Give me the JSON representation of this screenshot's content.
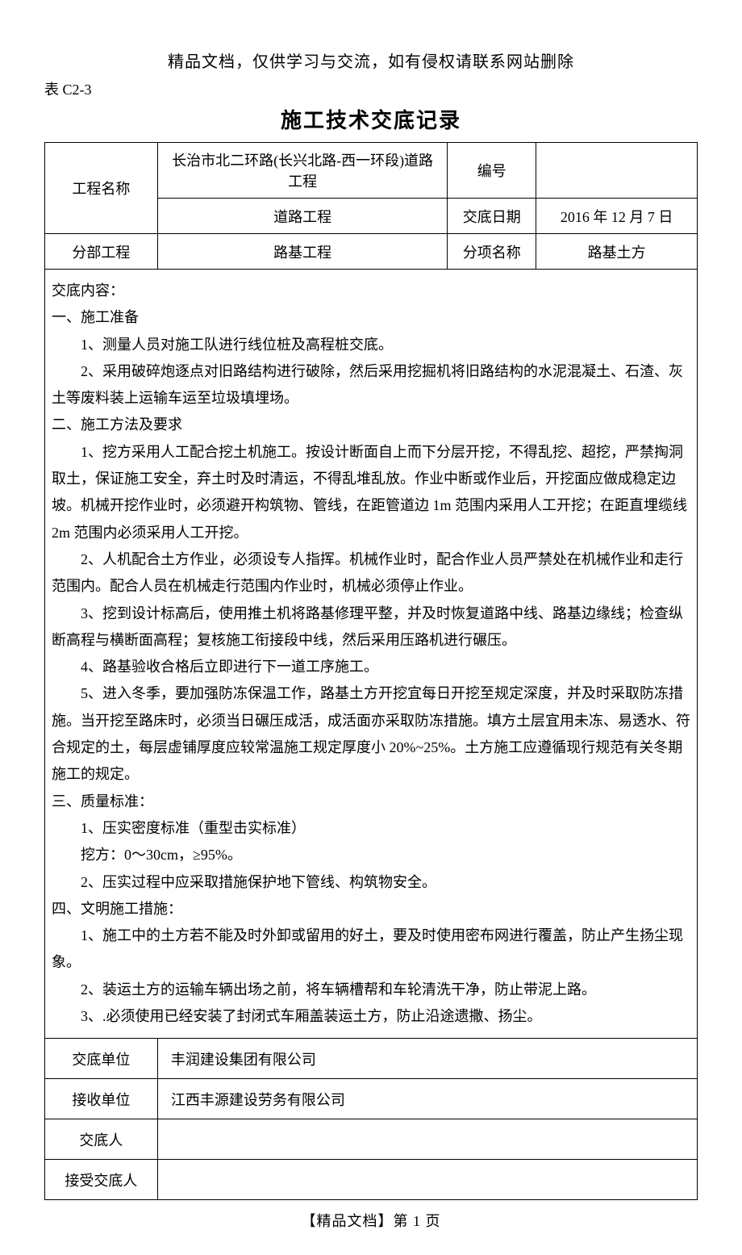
{
  "header_notice": "精品文档，仅供学习与交流，如有侵权请联系网站删除",
  "form_code": "表 C2-3",
  "doc_title": "施工技术交底记录",
  "header": {
    "project_name_label": "工程名称",
    "project_name_value": "长治市北二环路(长兴北路-西一环段)道路工程",
    "number_label": "编号",
    "number_value": "",
    "sub_project": "道路工程",
    "date_label": "交底日期",
    "date_value": "2016 年 12 月 7 日",
    "division_label": "分部工程",
    "division_value": "路基工程",
    "item_label": "分项名称",
    "item_value": "路基土方"
  },
  "content": {
    "title": "交底内容：",
    "s1_title": "一、施工准备",
    "s1_p1": "1、测量人员对施工队进行线位桩及高程桩交底。",
    "s1_p2": "2、采用破碎炮逐点对旧路结构进行破除，然后采用挖掘机将旧路结构的水泥混凝土、石渣、灰土等废料装上运输车运至垃圾填埋场。",
    "s2_title": "二、施工方法及要求",
    "s2_p1": "1、挖方采用人工配合挖土机施工。按设计断面自上而下分层开挖，不得乱挖、超挖，严禁掏洞取土，保证施工安全，弃土时及时清运，不得乱堆乱放。作业中断或作业后，开挖面应做成稳定边坡。机械开挖作业时，必须避开构筑物、管线，在距管道边 1m 范围内采用人工开挖；在距直埋缆线 2m 范围内必须采用人工开挖。",
    "s2_p2": "2、人机配合土方作业，必须设专人指挥。机械作业时，配合作业人员严禁处在机械作业和走行范围内。配合人员在机械走行范围内作业时，机械必须停止作业。",
    "s2_p3": "3、挖到设计标高后，使用推土机将路基修理平整，并及时恢复道路中线、路基边缘线；检查纵断高程与横断面高程；复核施工衔接段中线，然后采用压路机进行碾压。",
    "s2_p4": "4、路基验收合格后立即进行下一道工序施工。",
    "s2_p5": "5、进入冬季，要加强防冻保温工作，路基土方开挖宜每日开挖至规定深度，并及时采取防冻措施。当开挖至路床时，必须当日碾压成活，成活面亦采取防冻措施。填方土层宜用未冻、易透水、符合规定的土，每层虚铺厚度应较常温施工规定厚度小 20%~25%。土方施工应遵循现行规范有关冬期施工的规定。",
    "s3_title": "三、质量标准：",
    "s3_p1": "1、压实密度标准（重型击实标准）",
    "s3_p1b": "挖方：0～30cm，≥95%。",
    "s3_p2": "2、压实过程中应采取措施保护地下管线、构筑物安全。",
    "s4_title": "四、文明施工措施：",
    "s4_p1": "1、施工中的土方若不能及时外卸或留用的好土，要及时使用密布网进行覆盖，防止产生扬尘现象。",
    "s4_p2": "2、装运土方的运输车辆出场之前，将车辆槽帮和车轮清洗干净，防止带泥上路。",
    "s4_p3": "3、.必须使用已经安装了封闭式车厢盖装运土方，防止沿途遗撒、扬尘。"
  },
  "footer": {
    "r1_label": "交底单位",
    "r1_value": "丰润建设集团有限公司",
    "r2_label": "接收单位",
    "r2_value": "江西丰源建设劳务有限公司",
    "r3_label": "交底人",
    "r3_value": "",
    "r4_label": "接受交底人",
    "r4_value": ""
  },
  "page_footer": "【精品文档】第 1 页"
}
